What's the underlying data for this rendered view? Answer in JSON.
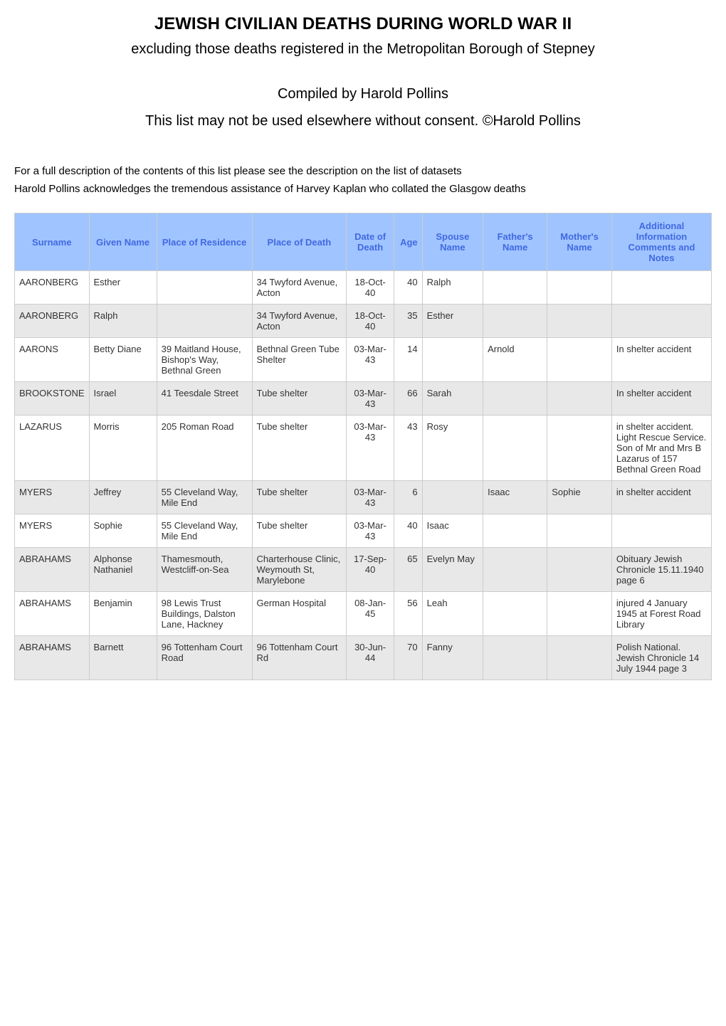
{
  "header": {
    "title": "JEWISH CIVILIAN DEATHS DURING WORLD WAR II",
    "subtitle": "excluding those deaths registered in the Metropolitan Borough of Stepney",
    "compiled": "Compiled by Harold Pollins",
    "consent": "This list may not be used elsewhere without consent. ©Harold Pollins",
    "description": "For a full description of the contents of this list please see the description on the list of datasets",
    "acknowledgment": "Harold Pollins acknowledges the tremendous assistance of Harvey Kaplan who collated the Glasgow deaths"
  },
  "table": {
    "columns": [
      {
        "label": "Surname",
        "key": "surname"
      },
      {
        "label": "Given Name",
        "key": "given_name"
      },
      {
        "label": "Place of Residence",
        "key": "residence"
      },
      {
        "label": "Place of Death",
        "key": "death_place"
      },
      {
        "label": "Date of Death",
        "key": "date"
      },
      {
        "label": "Age",
        "key": "age"
      },
      {
        "label": "Spouse Name",
        "key": "spouse"
      },
      {
        "label": "Father's Name",
        "key": "father"
      },
      {
        "label": "Mother's Name",
        "key": "mother"
      },
      {
        "label": "Additional Information Comments and Notes",
        "key": "additional"
      }
    ],
    "rows": [
      {
        "surname": "AARONBERG",
        "given_name": "Esther",
        "residence": "",
        "death_place": "34 Twyford Avenue, Acton",
        "date": "18-Oct-40",
        "age": "40",
        "spouse": "Ralph",
        "father": "",
        "mother": "",
        "additional": ""
      },
      {
        "surname": "AARONBERG",
        "given_name": "Ralph",
        "residence": "",
        "death_place": "34 Twyford Avenue, Acton",
        "date": "18-Oct-40",
        "age": "35",
        "spouse": "Esther",
        "father": "",
        "mother": "",
        "additional": ""
      },
      {
        "surname": "AARONS",
        "given_name": "Betty Diane",
        "residence": "39 Maitland House, Bishop's Way, Bethnal Green",
        "death_place": "Bethnal Green Tube Shelter",
        "date": "03-Mar-43",
        "age": "14",
        "spouse": "",
        "father": "Arnold",
        "mother": "",
        "additional": "In shelter accident"
      },
      {
        "surname": "BROOKSTONE",
        "given_name": "Israel",
        "residence": "41 Teesdale Street",
        "death_place": "Tube shelter",
        "date": "03-Mar-43",
        "age": "66",
        "spouse": "Sarah",
        "father": "",
        "mother": "",
        "additional": "In shelter accident"
      },
      {
        "surname": "LAZARUS",
        "given_name": "Morris",
        "residence": "205 Roman Road",
        "death_place": "Tube shelter",
        "date": "03-Mar-43",
        "age": "43",
        "spouse": "Rosy",
        "father": "",
        "mother": "",
        "additional": "in shelter accident. Light Rescue Service. Son of Mr and Mrs B Lazarus of 157 Bethnal Green Road"
      },
      {
        "surname": "MYERS",
        "given_name": "Jeffrey",
        "residence": "55 Cleveland Way, Mile End",
        "death_place": "Tube shelter",
        "date": "03-Mar-43",
        "age": "6",
        "spouse": "",
        "father": "Isaac",
        "mother": "Sophie",
        "additional": "in shelter accident"
      },
      {
        "surname": "MYERS",
        "given_name": "Sophie",
        "residence": "55 Cleveland Way, Mile End",
        "death_place": "Tube shelter",
        "date": "03-Mar-43",
        "age": "40",
        "spouse": "Isaac",
        "father": "",
        "mother": "",
        "additional": ""
      },
      {
        "surname": "ABRAHAMS",
        "given_name": "Alphonse Nathaniel",
        "residence": "Thamesmouth, Westcliff-on-Sea",
        "death_place": "Charterhouse Clinic, Weymouth St, Marylebone",
        "date": "17-Sep-40",
        "age": "65",
        "spouse": "Evelyn May",
        "father": "",
        "mother": "",
        "additional": "Obituary Jewish Chronicle 15.11.1940 page 6"
      },
      {
        "surname": "ABRAHAMS",
        "given_name": "Benjamin",
        "residence": "98 Lewis Trust Buildings, Dalston Lane, Hackney",
        "death_place": "German Hospital",
        "date": "08-Jan-45",
        "age": "56",
        "spouse": "Leah",
        "father": "",
        "mother": "",
        "additional": "injured 4 January 1945 at Forest Road Library"
      },
      {
        "surname": "ABRAHAMS",
        "given_name": "Barnett",
        "residence": "96 Tottenham Court Road",
        "death_place": "96 Tottenham Court Rd",
        "date": "30-Jun-44",
        "age": "70",
        "spouse": "Fanny",
        "father": "",
        "mother": "",
        "additional": "Polish National.  Jewish Chronicle 14 July 1944 page 3"
      }
    ],
    "styling": {
      "header_bg_color": "#a0c4ff",
      "header_text_color": "#4169e1",
      "row_even_bg": "#e8e8e8",
      "row_odd_bg": "#ffffff",
      "border_color": "#cccccc",
      "font_size_header": 13,
      "font_size_body": 13
    }
  }
}
